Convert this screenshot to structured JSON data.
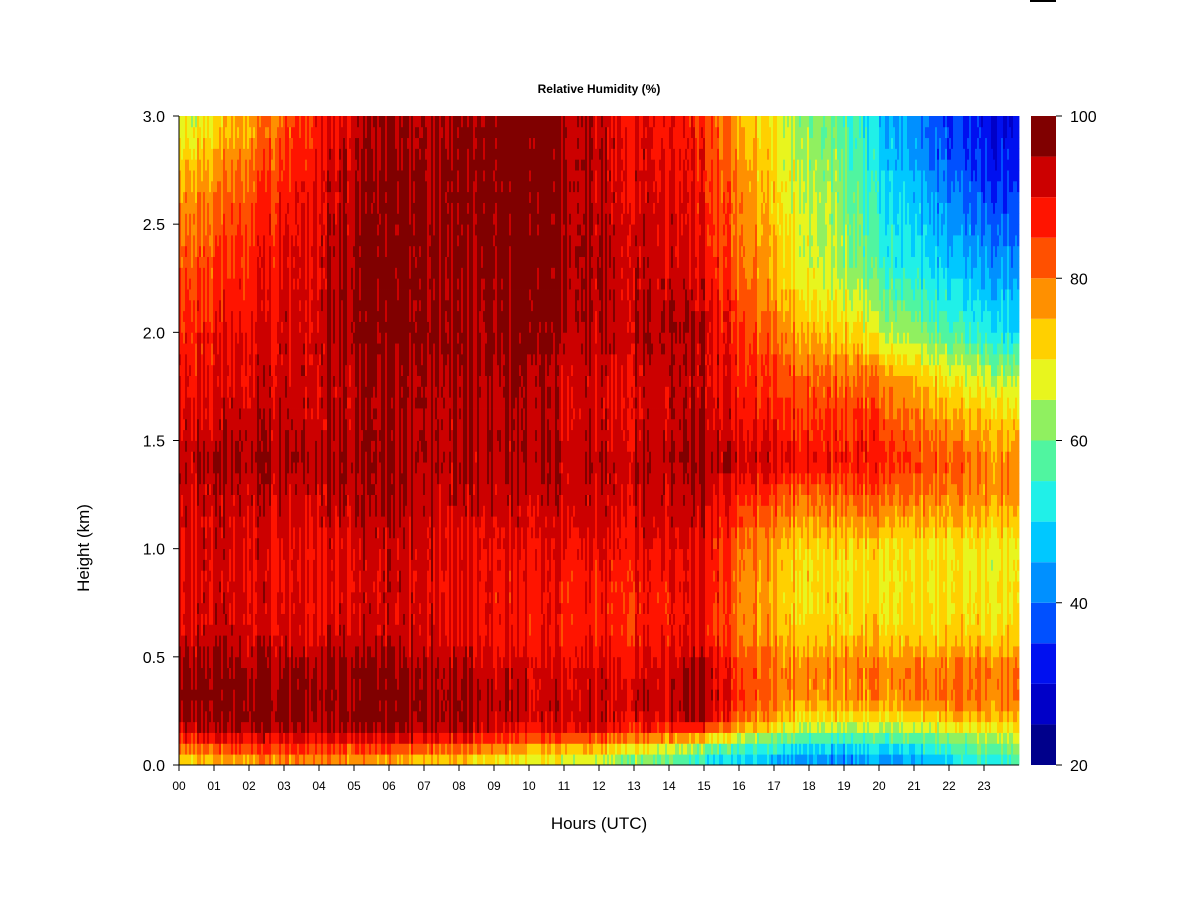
{
  "chart_data": {
    "type": "heatmap",
    "title": "Relative Humidity (%)",
    "xlabel": "Hours (UTC)",
    "ylabel": "Height (km)",
    "xlim": [
      0,
      24
    ],
    "ylim": [
      0.0,
      3.0
    ],
    "x_ticks": [
      "00",
      "01",
      "02",
      "03",
      "04",
      "05",
      "06",
      "07",
      "08",
      "09",
      "10",
      "11",
      "12",
      "13",
      "14",
      "15",
      "16",
      "17",
      "18",
      "19",
      "20",
      "21",
      "22",
      "23"
    ],
    "y_ticks": [
      "0.0",
      "0.5",
      "1.0",
      "1.5",
      "2.0",
      "2.5",
      "3.0"
    ],
    "colorbar": {
      "range": [
        20,
        100
      ],
      "ticks": [
        "20",
        "40",
        "60",
        "80",
        "100"
      ],
      "levels": [
        {
          "from": 20,
          "to": 25,
          "color": "#00008b"
        },
        {
          "from": 25,
          "to": 30,
          "color": "#0000c8"
        },
        {
          "from": 30,
          "to": 35,
          "color": "#0010f0"
        },
        {
          "from": 35,
          "to": 40,
          "color": "#0050ff"
        },
        {
          "from": 40,
          "to": 45,
          "color": "#0090ff"
        },
        {
          "from": 45,
          "to": 50,
          "color": "#00c8ff"
        },
        {
          "from": 50,
          "to": 55,
          "color": "#20f0e8"
        },
        {
          "from": 55,
          "to": 60,
          "color": "#50f5a0"
        },
        {
          "from": 60,
          "to": 65,
          "color": "#90f060"
        },
        {
          "from": 65,
          "to": 70,
          "color": "#e8f51e"
        },
        {
          "from": 70,
          "to": 75,
          "color": "#ffd000"
        },
        {
          "from": 75,
          "to": 80,
          "color": "#ff9000"
        },
        {
          "from": 80,
          "to": 85,
          "color": "#ff5000"
        },
        {
          "from": 85,
          "to": 90,
          "color": "#ff1400"
        },
        {
          "from": 90,
          "to": 95,
          "color": "#cc0000"
        },
        {
          "from": 95,
          "to": 100,
          "color": "#800000"
        }
      ]
    },
    "heights_km": [
      0.0,
      0.05,
      0.1,
      0.15,
      0.2,
      0.3,
      0.45,
      0.6,
      0.8,
      1.0,
      1.25,
      1.4,
      1.6,
      1.8,
      2.0,
      2.3,
      2.6,
      2.8,
      3.0
    ],
    "hours": [
      0,
      1,
      2,
      3,
      4,
      5,
      6,
      7,
      8,
      9,
      10,
      11,
      12,
      13,
      14,
      15,
      16,
      17,
      18,
      19,
      20,
      21,
      22,
      23,
      24
    ],
    "rh_percent": [
      [
        70,
        72,
        74,
        76,
        76,
        75,
        74,
        72,
        70,
        68,
        66,
        65,
        62,
        60,
        58,
        52,
        48,
        45,
        43,
        42,
        42,
        44,
        48,
        52,
        55
      ],
      [
        76,
        78,
        80,
        82,
        82,
        80,
        79,
        78,
        76,
        74,
        72,
        70,
        68,
        65,
        62,
        56,
        52,
        48,
        46,
        45,
        45,
        47,
        52,
        56,
        58
      ],
      [
        84,
        86,
        88,
        88,
        88,
        88,
        88,
        87,
        85,
        82,
        80,
        80,
        78,
        75,
        72,
        66,
        60,
        56,
        54,
        53,
        53,
        55,
        58,
        62,
        64
      ],
      [
        90,
        92,
        93,
        93,
        93,
        94,
        94,
        93,
        92,
        90,
        88,
        88,
        87,
        86,
        84,
        80,
        72,
        66,
        62,
        61,
        60,
        62,
        64,
        66,
        68
      ],
      [
        96,
        97,
        97,
        97,
        97,
        97,
        97,
        96,
        95,
        93,
        92,
        92,
        92,
        91,
        91,
        94,
        82,
        74,
        70,
        69,
        68,
        70,
        72,
        74,
        74
      ],
      [
        98,
        98,
        98,
        97,
        97,
        97,
        98,
        97,
        96,
        94,
        93,
        92,
        92,
        93,
        93,
        97,
        86,
        80,
        78,
        78,
        78,
        79,
        80,
        80,
        80
      ],
      [
        97,
        97,
        96,
        96,
        96,
        96,
        97,
        96,
        94,
        92,
        92,
        91,
        91,
        91,
        91,
        96,
        85,
        80,
        79,
        79,
        79,
        80,
        80,
        80,
        80
      ],
      [
        92,
        93,
        92,
        91,
        91,
        92,
        92,
        92,
        90,
        89,
        89,
        88,
        87,
        88,
        88,
        90,
        80,
        75,
        73,
        73,
        72,
        72,
        72,
        72,
        72
      ],
      [
        91,
        92,
        91,
        90,
        90,
        91,
        92,
        92,
        90,
        89,
        89,
        88,
        87,
        88,
        88,
        90,
        80,
        74,
        71,
        71,
        70,
        70,
        70,
        70,
        70
      ],
      [
        91,
        92,
        91,
        90,
        90,
        91,
        92,
        92,
        90,
        90,
        90,
        90,
        89,
        90,
        90,
        90,
        82,
        75,
        72,
        72,
        71,
        70,
        70,
        69,
        69
      ],
      [
        92,
        93,
        93,
        93,
        93,
        94,
        95,
        94,
        93,
        93,
        93,
        93,
        92,
        93,
        93,
        94,
        88,
        84,
        82,
        82,
        82,
        80,
        79,
        78,
        78
      ],
      [
        94,
        95,
        95,
        95,
        95,
        95,
        96,
        95,
        94,
        94,
        95,
        94,
        93,
        94,
        94,
        96,
        93,
        91,
        90,
        89,
        88,
        85,
        83,
        80,
        79
      ],
      [
        91,
        92,
        93,
        93,
        93,
        94,
        95,
        95,
        94,
        94,
        96,
        92,
        91,
        92,
        93,
        94,
        90,
        87,
        86,
        85,
        84,
        80,
        76,
        74,
        72
      ],
      [
        89,
        90,
        91,
        92,
        93,
        94,
        96,
        96,
        95,
        95,
        97,
        92,
        91,
        92,
        93,
        93,
        88,
        84,
        82,
        81,
        79,
        74,
        69,
        66,
        64
      ],
      [
        87,
        88,
        90,
        92,
        93,
        96,
        98,
        97,
        96,
        96,
        98,
        95,
        93,
        94,
        95,
        94,
        86,
        80,
        75,
        72,
        66,
        62,
        57,
        53,
        50
      ],
      [
        83,
        84,
        87,
        90,
        92,
        96,
        98,
        97,
        96,
        97,
        99,
        96,
        94,
        93,
        92,
        90,
        82,
        74,
        68,
        64,
        56,
        52,
        48,
        45,
        42
      ],
      [
        78,
        80,
        84,
        88,
        91,
        95,
        98,
        97,
        97,
        98,
        99,
        96,
        93,
        92,
        91,
        88,
        80,
        72,
        66,
        62,
        52,
        48,
        42,
        38,
        36
      ],
      [
        72,
        75,
        80,
        85,
        90,
        94,
        97,
        96,
        97,
        98,
        99,
        96,
        93,
        91,
        90,
        87,
        78,
        70,
        64,
        60,
        50,
        44,
        38,
        34,
        32
      ],
      [
        66,
        70,
        76,
        82,
        88,
        92,
        96,
        95,
        96,
        98,
        99,
        95,
        92,
        90,
        89,
        86,
        76,
        68,
        62,
        58,
        48,
        42,
        35,
        32,
        30
      ]
    ]
  }
}
